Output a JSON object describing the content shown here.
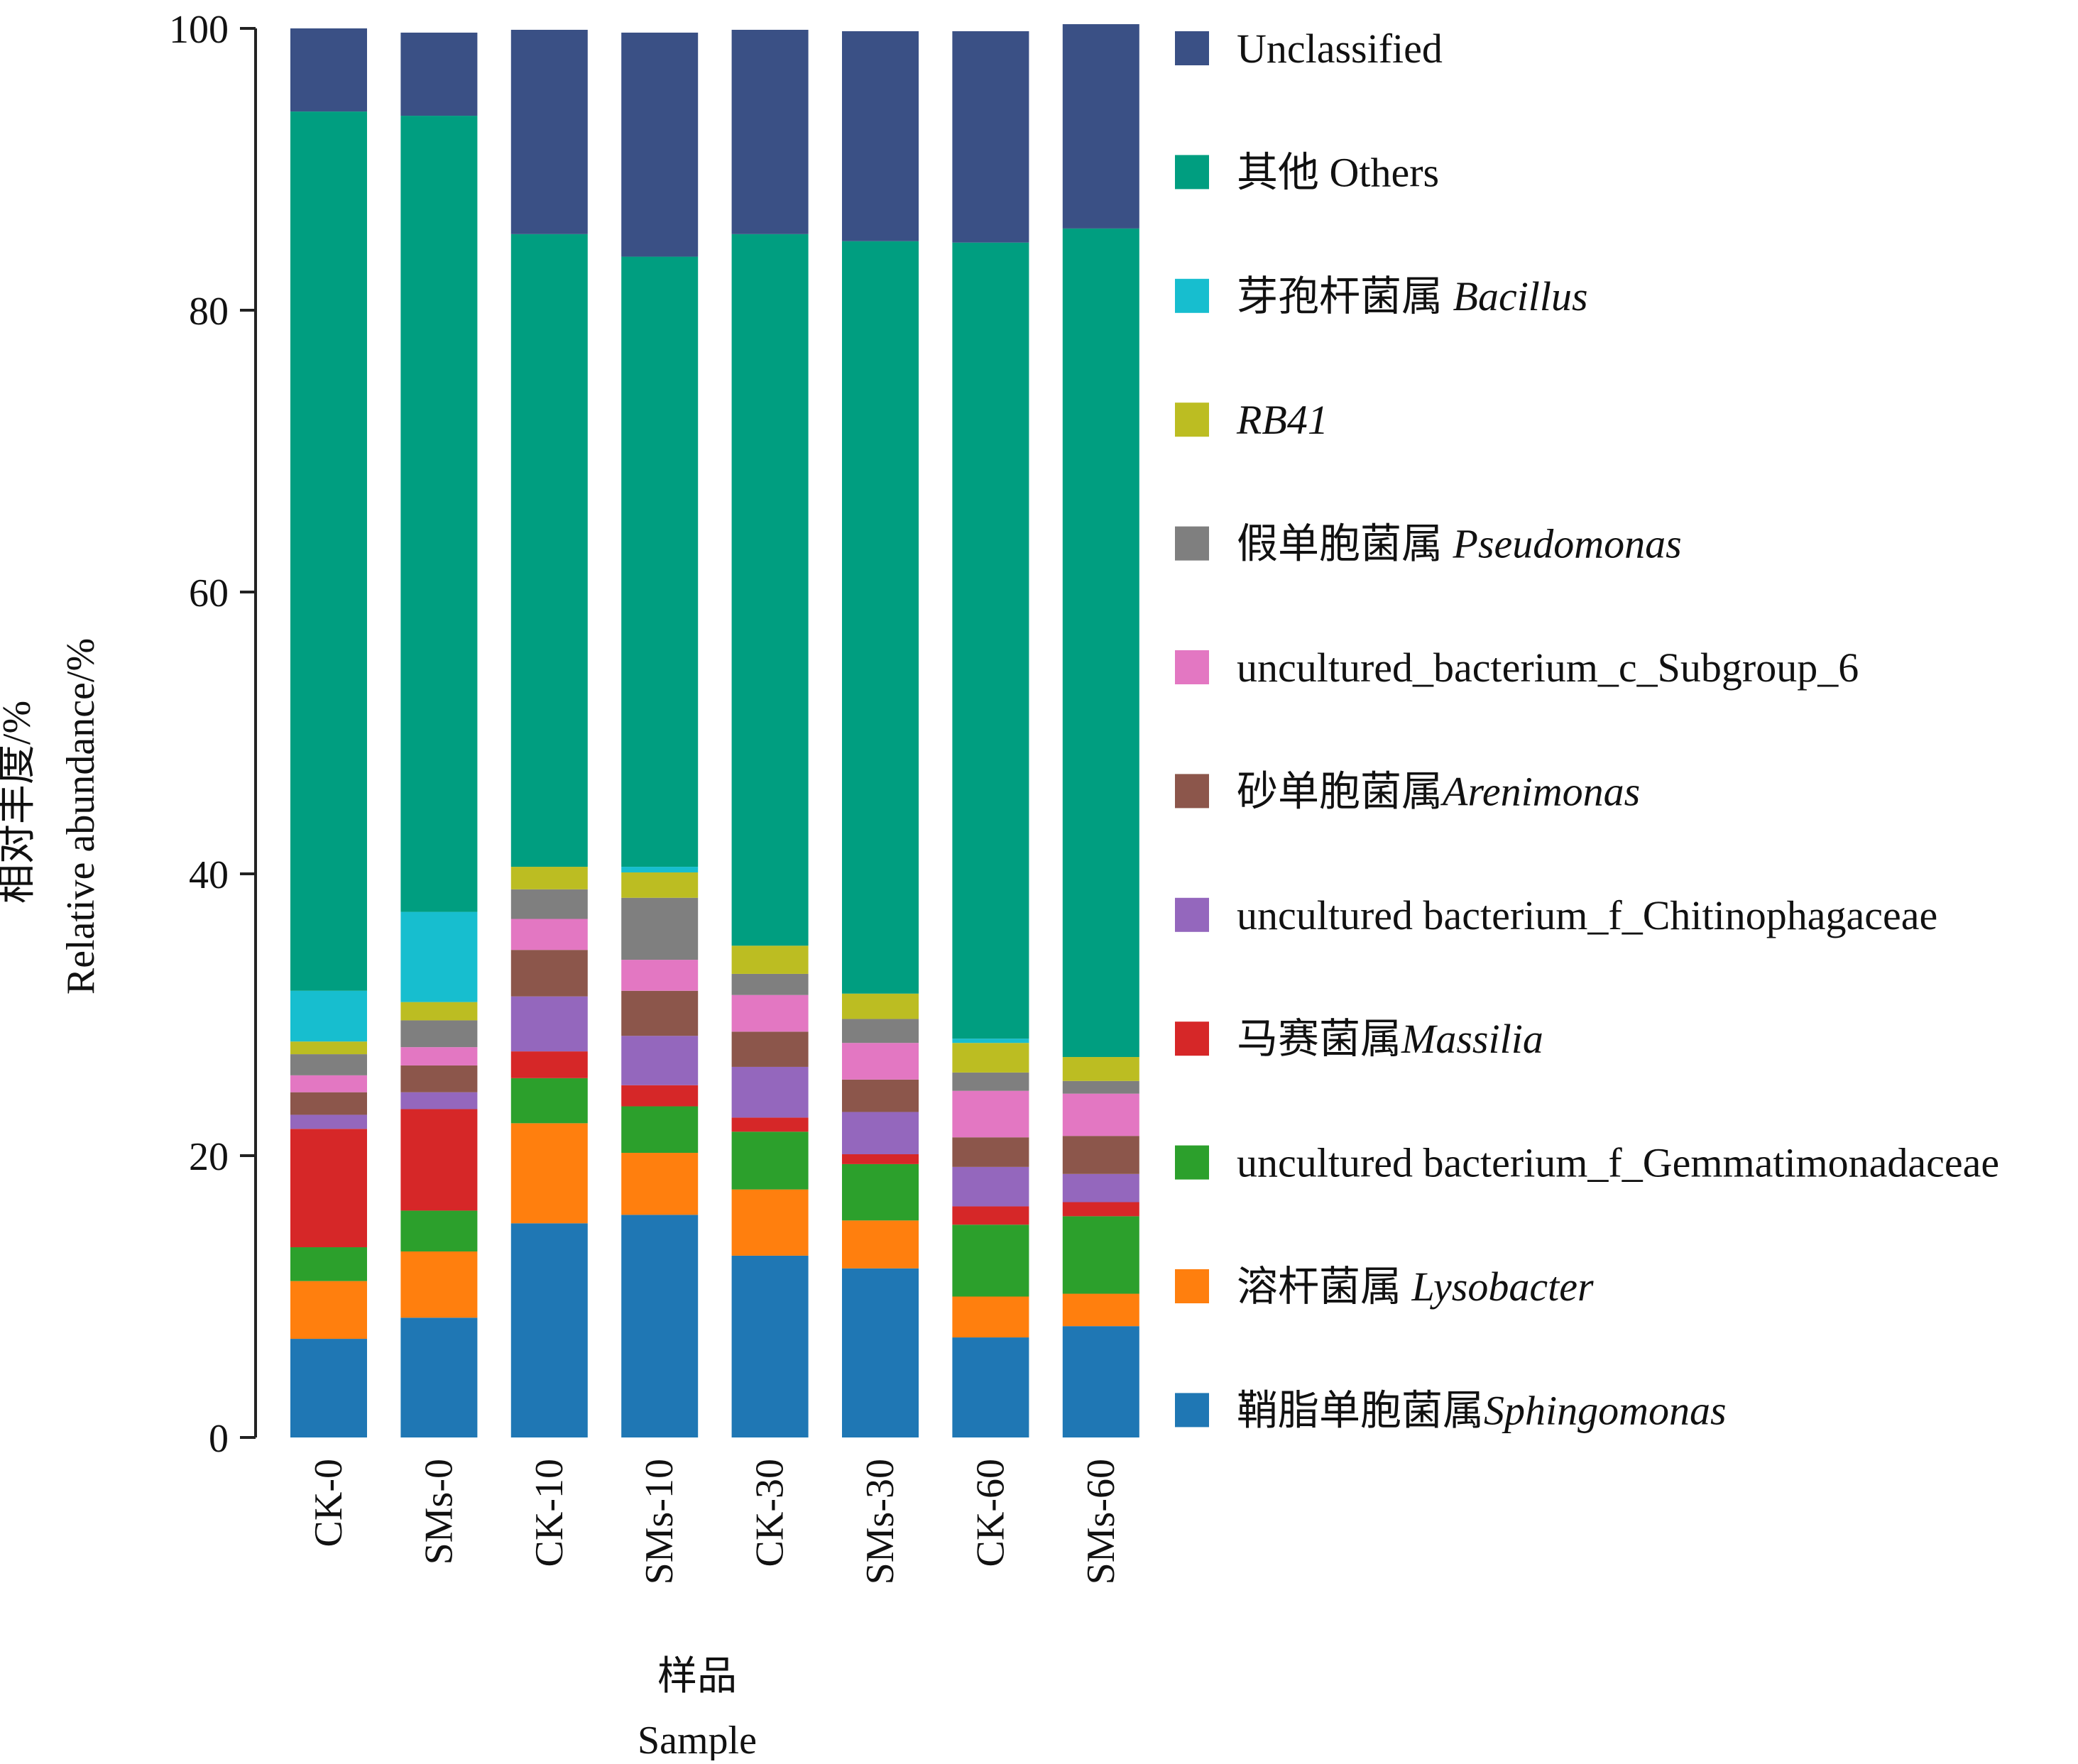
{
  "chart_data": {
    "type": "bar",
    "stacked": true,
    "categories": [
      "CK-0",
      "SMs-0",
      "CK-10",
      "SMs-10",
      "CK-30",
      "SMs-30",
      "CK-60",
      "SMs-60"
    ],
    "ylabel_cn": "相对丰度/%",
    "ylabel_en": "Relative abundance/%",
    "xlabel_cn": "样品",
    "xlabel_en": "Sample",
    "ylim": [
      0,
      100
    ],
    "yticks": [
      "0",
      "20",
      "40",
      "60",
      "80",
      "100"
    ],
    "legend_position": "right",
    "series": [
      {
        "name_cn": "鞘脂单胞菌属",
        "name_it": "Sphingomonas",
        "color": "#1f77b4",
        "values": [
          7.0,
          8.5,
          15.2,
          15.8,
          12.9,
          12.0,
          7.1,
          7.9
        ]
      },
      {
        "name_cn": "溶杆菌属 ",
        "name_it": "Lysobacter",
        "color": "#ff7f0e",
        "values": [
          4.1,
          4.7,
          7.1,
          4.4,
          4.7,
          3.4,
          2.9,
          2.3
        ]
      },
      {
        "name_cn": "uncultured bacterium_f_Gemmatimonadaceae",
        "name_it": "",
        "color": "#2ca02c",
        "values": [
          2.4,
          2.9,
          3.2,
          3.3,
          4.1,
          4.0,
          5.1,
          5.5
        ]
      },
      {
        "name_cn": "马赛菌属",
        "name_it": "Massilia",
        "color": "#d62728",
        "values": [
          8.4,
          7.2,
          1.9,
          1.5,
          1.0,
          0.7,
          1.3,
          1.0
        ]
      },
      {
        "name_cn": "uncultured bacterium_f_Chitinophagaceae",
        "name_it": "",
        "color": "#9467bd",
        "values": [
          1.0,
          1.2,
          3.9,
          3.5,
          3.6,
          3.0,
          2.8,
          2.0
        ]
      },
      {
        "name_cn": "砂单胞菌属",
        "name_it": "Arenimonas",
        "color": "#8c564b",
        "values": [
          1.6,
          1.9,
          3.3,
          3.2,
          2.5,
          2.3,
          2.1,
          2.7
        ]
      },
      {
        "name_cn": "uncultured_bacterium_c_Subgroup_6",
        "name_it": "",
        "color": "#e377c2",
        "values": [
          1.2,
          1.3,
          2.2,
          2.2,
          2.6,
          2.6,
          3.3,
          3.0
        ]
      },
      {
        "name_cn": "假单胞菌属 ",
        "name_it": "Pseudomonas",
        "color": "#7f7f7f",
        "values": [
          1.5,
          1.9,
          2.1,
          4.4,
          1.5,
          1.7,
          1.3,
          0.9
        ]
      },
      {
        "name_cn": "",
        "name_it": "RB41",
        "color": "#bcbd22",
        "values": [
          0.9,
          1.3,
          1.6,
          1.8,
          2.0,
          1.8,
          2.1,
          1.7
        ]
      },
      {
        "name_cn": "芽孢杆菌属 ",
        "name_it": "Bacillus",
        "color": "#17becf",
        "values": [
          3.6,
          6.4,
          0.0,
          0.4,
          0.0,
          0.0,
          0.3,
          0.0
        ]
      },
      {
        "name_cn": "其他 Others",
        "name_it": "",
        "color": "#009e80",
        "values": [
          62.4,
          56.5,
          44.9,
          43.3,
          50.5,
          53.4,
          56.5,
          58.8
        ]
      },
      {
        "name_cn": "Unclassified",
        "name_it": "",
        "color": "#3a5085",
        "values": [
          5.9,
          5.9,
          14.5,
          15.9,
          14.5,
          14.9,
          15.0,
          14.5
        ]
      }
    ]
  }
}
